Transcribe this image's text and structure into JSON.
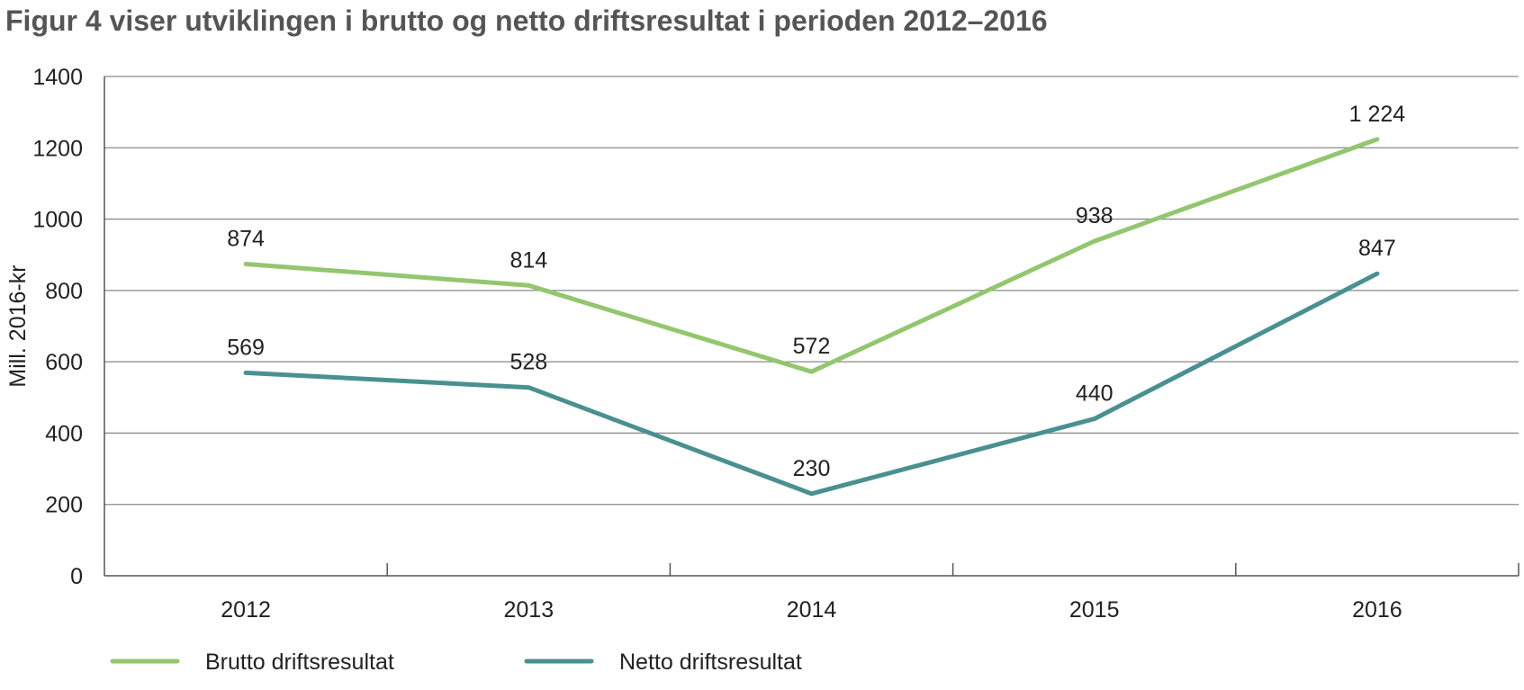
{
  "chart_data": {
    "type": "line",
    "title": "Figur 4 viser utviklingen i brutto og netto driftsresultat i perioden 2012–2016",
    "xlabel": "",
    "ylabel": "Mill. 2016-kr",
    "ylim": [
      0,
      1400
    ],
    "yticks": [
      "0",
      "200",
      "400",
      "600",
      "800",
      "1000",
      "1200",
      "1400"
    ],
    "categories": [
      "2012",
      "2013",
      "2014",
      "2015",
      "2016"
    ],
    "grid": true,
    "legend": "bottom-left",
    "series": [
      {
        "name": "Brutto driftsresultat",
        "color": "#93c66e",
        "values": [
          874,
          814,
          572,
          938,
          1224
        ],
        "labels": [
          "874",
          "814",
          "572",
          "938",
          "1 224"
        ]
      },
      {
        "name": "Netto driftsresultat",
        "color": "#4a9091",
        "values": [
          569,
          528,
          230,
          440,
          847
        ],
        "labels": [
          "569",
          "528",
          "230",
          "440",
          "847"
        ]
      }
    ]
  }
}
